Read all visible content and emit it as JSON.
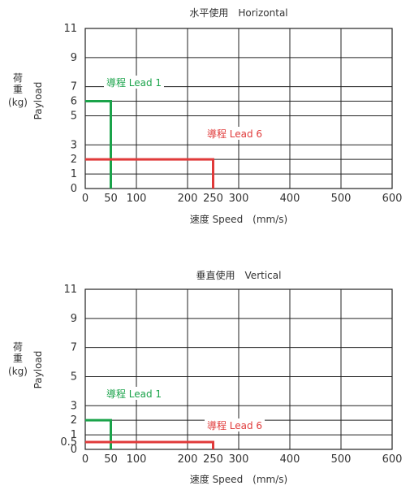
{
  "chart_data": [
    {
      "type": "line",
      "title": "水平使用　Horizontal",
      "xlabel": "速度 Speed　(mm/s)",
      "ylabel_zh": "荷重",
      "ylabel_unit": "(kg)",
      "ylabel_en": "Payload",
      "x_ticks": [
        0,
        50,
        100,
        200,
        250,
        300,
        400,
        500,
        600
      ],
      "y_ticks": [
        0,
        1,
        2,
        3,
        5,
        6,
        7,
        9,
        11
      ],
      "xlim": [
        0,
        600
      ],
      "ylim": [
        0,
        11
      ],
      "grid": true,
      "series": [
        {
          "name": "導程 Lead 1",
          "color": "#1aa34a",
          "x": [
            0,
            50,
            50
          ],
          "y": [
            6,
            6,
            0
          ]
        },
        {
          "name": "導程 Lead 6",
          "color": "#e03a3a",
          "x": [
            0,
            250,
            250
          ],
          "y": [
            2,
            2,
            0
          ]
        }
      ]
    },
    {
      "type": "line",
      "title": "垂直使用　Vertical",
      "xlabel": "速度 Speed　(mm/s)",
      "ylabel_zh": "荷重",
      "ylabel_unit": "(kg)",
      "ylabel_en": "Payload",
      "x_ticks": [
        0,
        50,
        100,
        200,
        250,
        300,
        400,
        500,
        600
      ],
      "y_ticks": [
        0,
        0.5,
        1,
        2,
        3,
        5,
        7,
        9,
        11
      ],
      "xlim": [
        0,
        600
      ],
      "ylim": [
        0,
        11
      ],
      "grid": true,
      "series": [
        {
          "name": "導程 Lead 1",
          "color": "#1aa34a",
          "x": [
            0,
            50,
            50
          ],
          "y": [
            2,
            2,
            0
          ]
        },
        {
          "name": "導程 Lead 6",
          "color": "#e03a3a",
          "x": [
            0,
            250,
            250
          ],
          "y": [
            0.5,
            0.5,
            0
          ]
        }
      ]
    }
  ]
}
